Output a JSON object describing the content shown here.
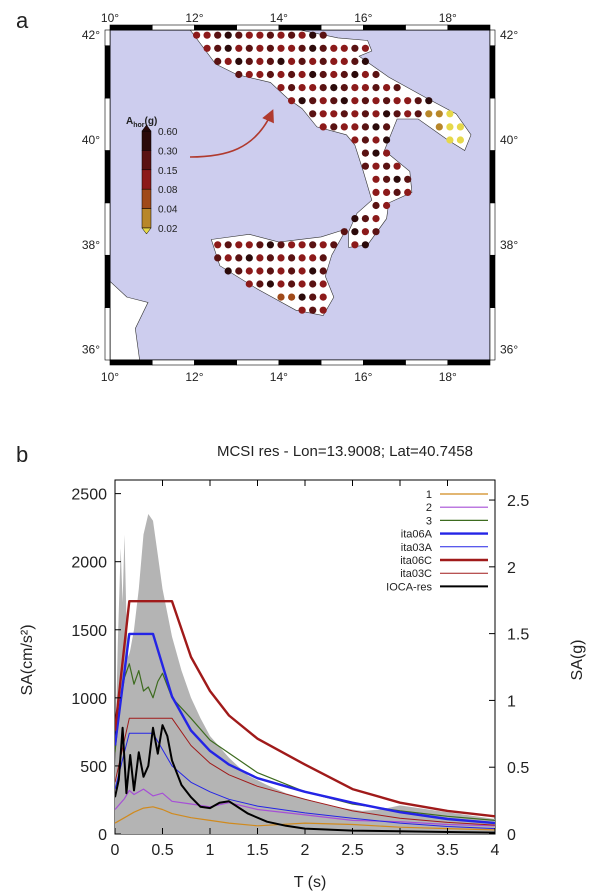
{
  "panels": {
    "a_label": "a",
    "b_label": "b"
  },
  "map": {
    "lon_ticks": [
      "10°",
      "12°",
      "14°",
      "16°",
      "18°"
    ],
    "lat_ticks": [
      "36°",
      "38°",
      "40°",
      "42°"
    ],
    "lon_range": [
      10,
      19
    ],
    "lat_range": [
      35.8,
      42.1
    ],
    "sea_color": "#cdcdee",
    "land_color": "#ffffff",
    "arrow_color": "#b03a2e",
    "legend": {
      "title_main": "A",
      "title_sub": "hor",
      "title_unit": "(g)",
      "levels": [
        "0.60",
        "0.30",
        "0.15",
        "0.08",
        "0.04",
        "0.02"
      ],
      "colors": [
        "#2b0a0a",
        "#5a1212",
        "#8c1a1a",
        "#a04a1a",
        "#b8872a",
        "#e6d84a"
      ]
    }
  },
  "chart_data": {
    "type": "line",
    "title": "MCSI res - Lon=13.9008; Lat=40.7458",
    "xlabel": "T (s)",
    "ylabel_left": "SA(cm/s²)",
    "ylabel_right": "SA(g)",
    "xlim": [
      0,
      4
    ],
    "ylim": [
      0,
      2600
    ],
    "ylim_right": [
      0,
      2.65
    ],
    "x_ticks": [
      "0",
      "0.5",
      "1",
      "1.5",
      "2",
      "2.5",
      "3",
      "3.5",
      "4"
    ],
    "y_ticks_left": [
      "0",
      "500",
      "1000",
      "1500",
      "2000",
      "2500"
    ],
    "y_ticks_right": [
      "0",
      "0.5",
      "1",
      "1.5",
      "2",
      "2.5"
    ],
    "legend_position": "top-right",
    "shaded_area": {
      "color": "#b4b4b4",
      "x": [
        0.0,
        0.03,
        0.06,
        0.08,
        0.1,
        0.12,
        0.14,
        0.16,
        0.2,
        0.25,
        0.3,
        0.35,
        0.4,
        0.45,
        0.5,
        0.6,
        0.7,
        0.8,
        0.9,
        1.0,
        1.2,
        1.4,
        1.6,
        1.8,
        2.0,
        2.3,
        2.6,
        2.8,
        3.0,
        3.5,
        4.0
      ],
      "y": [
        500,
        1400,
        2100,
        1700,
        2200,
        1600,
        1300,
        1350,
        1500,
        1800,
        2200,
        2350,
        2300,
        2050,
        1800,
        1450,
        1200,
        1000,
        850,
        720,
        560,
        430,
        360,
        300,
        260,
        200,
        170,
        180,
        210,
        160,
        110
      ]
    },
    "series": [
      {
        "name": "1",
        "color": "#d08a1e",
        "width": 1.2,
        "x": [
          0.0,
          0.1,
          0.2,
          0.3,
          0.4,
          0.5,
          0.6,
          0.8,
          1.0,
          1.2,
          1.5,
          2.0,
          2.5,
          3.0,
          3.5,
          4.0
        ],
        "y": [
          80,
          120,
          160,
          190,
          200,
          180,
          150,
          120,
          100,
          80,
          60,
          80,
          70,
          50,
          40,
          30
        ]
      },
      {
        "name": "2",
        "color": "#a64fd6",
        "width": 1.2,
        "x": [
          0.0,
          0.1,
          0.15,
          0.2,
          0.3,
          0.4,
          0.5,
          0.6,
          0.8,
          1.0,
          1.2,
          1.5,
          2.0,
          2.5,
          3.0,
          3.5,
          4.0
        ],
        "y": [
          180,
          260,
          320,
          290,
          330,
          280,
          300,
          240,
          220,
          200,
          230,
          180,
          140,
          100,
          90,
          70,
          60
        ]
      },
      {
        "name": "3",
        "color": "#3d6b1f",
        "width": 1.2,
        "x": [
          0.0,
          0.05,
          0.1,
          0.15,
          0.2,
          0.25,
          0.3,
          0.35,
          0.4,
          0.45,
          0.5,
          0.6,
          0.8,
          1.0,
          1.5,
          2.0,
          2.5,
          3.0,
          3.5,
          4.0
        ],
        "y": [
          600,
          950,
          1150,
          1250,
          1100,
          1200,
          1050,
          1080,
          1000,
          1120,
          1180,
          1000,
          850,
          690,
          450,
          310,
          220,
          170,
          130,
          100
        ]
      },
      {
        "name": "ita06A",
        "color": "#2424e6",
        "width": 2.4,
        "x": [
          0.0,
          0.15,
          0.4,
          0.6,
          0.8,
          1.0,
          1.2,
          1.5,
          2.0,
          2.5,
          3.0,
          3.5,
          4.0
        ],
        "y": [
          650,
          1470,
          1470,
          1010,
          760,
          610,
          510,
          410,
          310,
          230,
          160,
          110,
          80
        ]
      },
      {
        "name": "ita03A",
        "color": "#2424e6",
        "width": 1.0,
        "x": [
          0.0,
          0.15,
          0.4,
          0.6,
          0.8,
          1.0,
          1.2,
          1.5,
          2.0,
          2.5,
          3.0,
          3.5,
          4.0
        ],
        "y": [
          330,
          740,
          740,
          500,
          380,
          310,
          255,
          205,
          155,
          115,
          80,
          55,
          40
        ]
      },
      {
        "name": "ita06C",
        "color": "#a01a1a",
        "width": 2.4,
        "x": [
          0.0,
          0.15,
          0.6,
          0.8,
          1.0,
          1.2,
          1.5,
          2.0,
          2.5,
          3.0,
          3.5,
          4.0
        ],
        "y": [
          760,
          1710,
          1710,
          1300,
          1050,
          870,
          700,
          510,
          330,
          230,
          170,
          130
        ]
      },
      {
        "name": "ita03C",
        "color": "#a01a1a",
        "width": 1.0,
        "x": [
          0.0,
          0.15,
          0.6,
          0.8,
          1.0,
          1.2,
          1.5,
          2.0,
          2.5,
          3.0,
          3.5,
          4.0
        ],
        "y": [
          380,
          850,
          850,
          650,
          520,
          435,
          350,
          255,
          170,
          115,
          85,
          65
        ]
      },
      {
        "name": "IOCA-res",
        "color": "#000000",
        "width": 2.0,
        "x": [
          0.0,
          0.04,
          0.08,
          0.12,
          0.16,
          0.2,
          0.25,
          0.3,
          0.35,
          0.4,
          0.45,
          0.5,
          0.55,
          0.6,
          0.7,
          0.8,
          0.9,
          1.0,
          1.1,
          1.2,
          1.4,
          1.6,
          1.8,
          2.0,
          2.5,
          3.0,
          3.5,
          4.0
        ],
        "y": [
          270,
          400,
          780,
          300,
          580,
          320,
          600,
          420,
          500,
          780,
          590,
          800,
          720,
          540,
          360,
          270,
          200,
          190,
          230,
          240,
          150,
          90,
          60,
          40,
          25,
          20,
          15,
          10
        ]
      }
    ]
  }
}
